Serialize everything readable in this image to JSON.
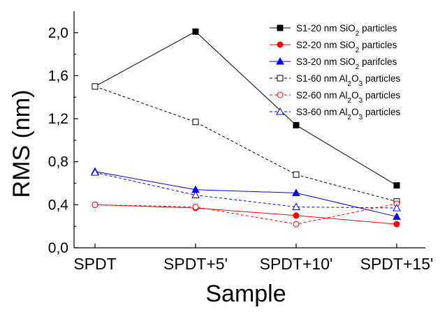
{
  "chart_data": {
    "type": "line",
    "title": "",
    "xlabel": "Sample",
    "ylabel": "RMS (nm)",
    "categories": [
      "SPDT",
      "SPDT+5'",
      "SPDT+10'",
      "SPDT+15'"
    ],
    "ylim": [
      0,
      2.2
    ],
    "yticks": [
      "0,0",
      "0,4",
      "0,8",
      "1,2",
      "1,6",
      "2,0"
    ],
    "ytick_values": [
      0,
      0.4,
      0.8,
      1.2,
      1.6,
      2.0
    ],
    "grid": false,
    "legend_position": "top-right",
    "series": [
      {
        "name": "S1-20 nm SiO2 particles",
        "legend": {
          "pre": "S1-20 nm SiO",
          "sub": "2",
          "post": " particles"
        },
        "values": [
          null,
          2.01,
          1.14,
          0.58
        ],
        "color": "#000000",
        "marker": "square",
        "filled": true,
        "dashed": false
      },
      {
        "name": "S2-20 nm SiO2 particles",
        "legend": {
          "pre": "S2-20 nm SiO",
          "sub": "2",
          "post": " particles"
        },
        "values": [
          0.4,
          0.37,
          0.3,
          0.22
        ],
        "color": "#ff0000",
        "marker": "circle",
        "filled": true,
        "dashed": false
      },
      {
        "name": "S3-20 nm SiO2 parifcles",
        "legend": {
          "pre": "S3-20 nm SiO",
          "sub": "2",
          "post": " parifcles"
        },
        "values": [
          0.71,
          0.54,
          0.51,
          0.29
        ],
        "color": "#0000ff",
        "marker": "triangle",
        "filled": true,
        "dashed": false
      },
      {
        "name": "S1-60 nm Al2O3 particles",
        "legend": {
          "pre": "S1-60 nm Al",
          "sub": "2",
          "mid": "O",
          "sub2": "3",
          "post": " particles"
        },
        "values": [
          1.5,
          1.17,
          0.68,
          0.43
        ],
        "color": "#000000",
        "marker": "square",
        "filled": false,
        "dashed": true
      },
      {
        "name": "S2-60 nm Al2O3 particles",
        "legend": {
          "pre": "S2-60 nm Al",
          "sub": "2",
          "mid": "O",
          "sub2": "3",
          "post": " particles"
        },
        "values": [
          0.4,
          0.38,
          0.22,
          0.41
        ],
        "color": "#ff0000",
        "marker": "circle",
        "filled": false,
        "dashed": true
      },
      {
        "name": "S3-60 nm Al2O3 particles",
        "legend": {
          "pre": "S3-60 nm Al",
          "sub": "2",
          "mid": "O",
          "sub2": "3",
          "post": " particles"
        },
        "values": [
          0.7,
          0.49,
          0.38,
          0.37
        ],
        "color": "#0000ff",
        "marker": "triangle",
        "filled": false,
        "dashed": true
      }
    ]
  }
}
